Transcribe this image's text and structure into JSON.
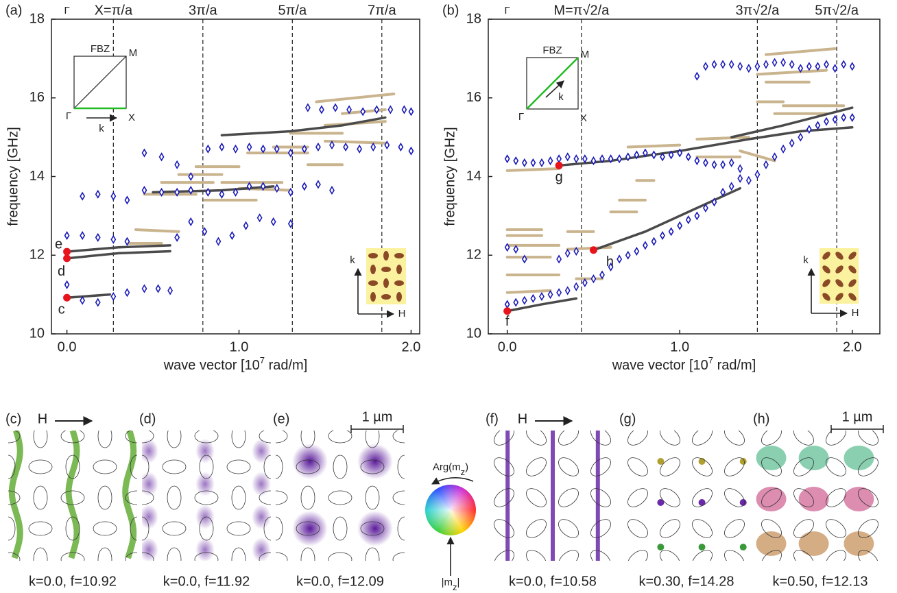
{
  "chart_data": [
    {
      "type": "scatter",
      "panel": "(a)",
      "y_label": "frequency [GHz]",
      "x_label": [
        "wave vector [10",
        "7",
        " rad/m]"
      ],
      "xlim": [
        -0.09,
        2.05
      ],
      "ylim": [
        10,
        18
      ],
      "xticks": [
        {
          "value": 0,
          "label": "0.0"
        },
        {
          "value": 1,
          "label": "1.0"
        },
        {
          "value": 2,
          "label": "2.0"
        }
      ],
      "yticks": [
        10,
        12,
        14,
        16,
        18
      ],
      "gamma_label": "Γ",
      "symmetry_lines": [
        {
          "value": 0.27,
          "label": "X=π/a"
        },
        {
          "value": 0.79,
          "label": "3π/a"
        },
        {
          "value": 1.31,
          "label": "5π/a"
        },
        {
          "value": 1.83,
          "label": "7π/a"
        }
      ],
      "series": [
        {
          "color": "#c9b48e",
          "marker": "dash",
          "x": [
            0.4,
            0.65,
            null,
            0.35,
            0.55,
            null,
            0.45,
            0.75,
            null,
            0.55,
            0.85,
            null,
            0.65,
            0.9,
            null,
            0.75,
            1.0,
            null,
            0.9,
            1.25,
            null,
            1.0,
            1.3,
            null,
            0.8,
            1.1,
            null,
            1.05,
            1.4,
            null,
            1.2,
            1.4,
            null,
            1.3,
            1.6,
            null,
            1.45,
            1.9,
            null,
            1.5,
            1.85,
            null,
            1.5,
            1.85,
            null,
            1.6,
            1.85,
            null,
            1.4,
            1.6
          ],
          "values": [
            12.65,
            12.6,
            null,
            12.3,
            12.3,
            null,
            13.55,
            13.55,
            null,
            13.85,
            13.85,
            null,
            14.05,
            14.05,
            null,
            14.25,
            14.25,
            null,
            13.85,
            13.85,
            null,
            13.7,
            13.65,
            null,
            13.4,
            13.4,
            null,
            14.6,
            14.6,
            null,
            14.75,
            14.75,
            null,
            15.1,
            15.1,
            null,
            15.9,
            16.1,
            null,
            15.3,
            15.4,
            null,
            14.9,
            14.85,
            null,
            15.6,
            15.7,
            null,
            14.3,
            14.3
          ]
        },
        {
          "color": "#4a4a4a",
          "marker": "line",
          "x": [
            0,
            0.3,
            0.6,
            null,
            0,
            0.3,
            0.6,
            null,
            0,
            0.25,
            null,
            0.9,
            1.3,
            1.6,
            1.85,
            null,
            0.5,
            0.9,
            1.2
          ],
          "values": [
            12.09,
            12.2,
            12.25,
            null,
            11.92,
            12.05,
            12.1,
            null,
            10.92,
            11.0,
            null,
            15.05,
            15.15,
            15.3,
            15.5,
            null,
            13.6,
            13.65,
            13.75
          ]
        },
        {
          "color": "#1a1ab8",
          "marker": "diamond",
          "x": [
            0,
            0.09,
            0.18,
            0.27,
            0.35,
            0.45,
            0.53,
            0.6,
            0,
            0.09,
            0.18,
            0.27,
            0.35,
            0.09,
            0.18,
            0.27,
            0.35,
            0.45,
            0.55,
            0.64,
            0.72,
            0.45,
            0.55,
            0.64,
            0.72,
            0.82,
            0.9,
            0.98,
            1.06,
            1.14,
            1.22,
            1.3,
            1.38,
            1.46,
            1.54,
            0.64,
            0.72,
            0.8,
            0.88,
            0.96,
            1.04,
            1.12,
            1.2,
            1.3,
            0.82,
            0.9,
            0.98,
            1.06,
            1.14,
            1.22,
            1.3,
            1.38,
            1.46,
            1.54,
            1.62,
            1.7,
            1.78,
            1.86,
            1.94,
            2.0,
            1.4,
            1.48,
            1.56,
            1.64,
            1.72,
            1.8,
            1.88,
            1.96,
            2.0
          ],
          "values": [
            11.25,
            10.85,
            10.8,
            10.95,
            11.05,
            11.15,
            11.15,
            11.1,
            12.5,
            12.5,
            12.45,
            12.4,
            12.35,
            13.5,
            13.55,
            13.5,
            13.4,
            14.6,
            14.5,
            14.3,
            14.0,
            13.65,
            13.6,
            13.6,
            13.65,
            13.6,
            13.55,
            13.6,
            13.75,
            13.75,
            13.7,
            13.6,
            13.75,
            13.8,
            13.65,
            12.45,
            12.85,
            12.6,
            12.35,
            12.5,
            12.75,
            12.95,
            12.85,
            12.8,
            14.7,
            14.75,
            14.7,
            14.75,
            14.7,
            14.7,
            14.6,
            14.7,
            14.75,
            14.8,
            14.75,
            14.7,
            14.75,
            14.8,
            14.75,
            14.65,
            15.75,
            15.7,
            15.75,
            15.7,
            15.65,
            15.7,
            15.7,
            15.7,
            15.65
          ]
        }
      ],
      "modes": [
        {
          "label": "c",
          "x": 0,
          "value": 10.92
        },
        {
          "label": "d",
          "x": 0,
          "value": 11.92
        },
        {
          "label": "e",
          "x": 0,
          "value": 12.09
        }
      ],
      "inset_bz": {
        "title": "FBZ",
        "gamma": "Γ",
        "x": "X",
        "m": "M",
        "k": "k",
        "k_color": "#22bb22"
      },
      "inset_lattice": {
        "k": "k",
        "h": "H"
      }
    },
    {
      "type": "scatter",
      "panel": "(b)",
      "y_label": "frequency [GHz]",
      "x_label": [
        "wave vector [10",
        "7",
        " rad/m]"
      ],
      "xlim": [
        -0.11,
        2.16
      ],
      "ylim": [
        10,
        18
      ],
      "xticks": [
        {
          "value": 0,
          "label": "0.0"
        },
        {
          "value": 1,
          "label": "1.0"
        },
        {
          "value": 2,
          "label": "2.0"
        }
      ],
      "yticks": [
        10,
        12,
        14,
        16,
        18
      ],
      "gamma_label": "Γ",
      "symmetry_lines": [
        {
          "value": 0.43,
          "label": "M=π√2/a"
        },
        {
          "value": 1.45,
          "label": "3π√2/a"
        },
        {
          "value": 1.91,
          "label": "5π√2/a"
        }
      ],
      "series": [
        {
          "color": "#c9b48e",
          "marker": "dash",
          "x": [
            0,
            0.2,
            null,
            0,
            0.2,
            null,
            0,
            0.3,
            null,
            0,
            0.25,
            null,
            0,
            0.3,
            null,
            0,
            0.25,
            null,
            0.35,
            0.5,
            null,
            0.35,
            0.6,
            null,
            0.4,
            0.55,
            null,
            0.6,
            0.75,
            null,
            0.65,
            0.8,
            null,
            0.75,
            0.85,
            null,
            0.7,
            1.0,
            null,
            1.1,
            1.4,
            null,
            1.1,
            1.35,
            null,
            1.35,
            1.55,
            null,
            1.45,
            1.85,
            null,
            1.5,
            1.9,
            null,
            1.5,
            1.75,
            null,
            1.6,
            1.95,
            null,
            1.55,
            1.85,
            null,
            1.45,
            1.6,
            null,
            0,
            0.3
          ],
          "values": [
            12.65,
            12.65,
            null,
            12.5,
            12.5,
            null,
            12.25,
            12.25,
            null,
            11.95,
            11.95,
            null,
            11.5,
            11.5,
            null,
            11.05,
            11.1,
            null,
            12.6,
            12.6,
            null,
            12.15,
            12.2,
            null,
            11.4,
            11.4,
            null,
            13.1,
            13.1,
            null,
            13.4,
            13.4,
            null,
            13.9,
            13.9,
            null,
            14.75,
            14.8,
            null,
            14.95,
            15.0,
            null,
            14.5,
            14.5,
            null,
            14.65,
            14.4,
            null,
            16.6,
            16.7,
            null,
            17.1,
            17.25,
            null,
            16.4,
            16.4,
            null,
            15.8,
            15.8,
            null,
            15.6,
            15.6,
            null,
            15.9,
            15.9,
            null,
            14.15,
            14.2
          ]
        },
        {
          "color": "#4a4a4a",
          "marker": "line",
          "x": [
            0,
            0.2,
            0.4,
            null,
            0.3,
            0.6,
            1.0,
            1.4,
            1.7,
            2.0,
            null,
            0.5,
            0.8,
            1.1,
            1.35,
            null,
            1.3,
            1.6,
            2.0
          ],
          "values": [
            10.58,
            10.75,
            10.9,
            null,
            14.28,
            14.4,
            14.65,
            14.95,
            15.15,
            15.25,
            null,
            12.13,
            12.6,
            13.2,
            13.7,
            null,
            15.0,
            15.3,
            15.75
          ]
        },
        {
          "color": "#1a1ab8",
          "marker": "diamond",
          "x": [
            0,
            0.05,
            0.1,
            0.15,
            0.2,
            0.25,
            0.3,
            0.35,
            0.4,
            0.45,
            0.5,
            0.55,
            0.6,
            0.65,
            0.7,
            0.75,
            0.8,
            0.85,
            0.9,
            0.95,
            1.0,
            1.05,
            1.1,
            1.15,
            1.2,
            1.25,
            1.3,
            1.35,
            1.4,
            1.45,
            1.5,
            1.55,
            1.6,
            1.65,
            1.7,
            1.75,
            1.8,
            1.85,
            1.9,
            1.95,
            2.0,
            0,
            0.05,
            0.1,
            0.15,
            0.2,
            0.25,
            0.3,
            0.35,
            0.4,
            0.45,
            0.5,
            0.55,
            0.6,
            0.65,
            0.7,
            0.75,
            0.8,
            0.85,
            0.9,
            0.95,
            1.0,
            1.05,
            1.1,
            1.15,
            1.2,
            1.25,
            1.3,
            1.35,
            0,
            0.05,
            0.1,
            0.3,
            0.35,
            0.4,
            1.1,
            1.15,
            1.2,
            1.25,
            1.3,
            1.35,
            1.4,
            1.45,
            1.5,
            1.55,
            1.6,
            1.65,
            1.7,
            1.75,
            1.8,
            1.85,
            1.9,
            1.95,
            2.0
          ],
          "values": [
            10.75,
            10.8,
            10.85,
            10.9,
            10.95,
            11.0,
            11.05,
            11.1,
            11.2,
            11.3,
            11.4,
            11.5,
            11.7,
            11.9,
            12.0,
            12.1,
            12.25,
            12.35,
            12.5,
            12.6,
            12.75,
            12.9,
            13.0,
            13.2,
            13.35,
            13.6,
            13.75,
            13.95,
            13.9,
            14.05,
            14.3,
            14.5,
            14.7,
            14.85,
            15.0,
            15.2,
            15.3,
            15.4,
            15.45,
            15.5,
            15.5,
            14.45,
            14.4,
            14.35,
            14.35,
            14.35,
            14.4,
            14.45,
            14.5,
            14.45,
            14.45,
            14.4,
            14.45,
            14.45,
            14.45,
            14.5,
            14.55,
            14.6,
            14.55,
            14.5,
            14.55,
            14.6,
            14.5,
            14.4,
            14.35,
            14.3,
            14.3,
            14.35,
            14.2,
            12.2,
            12.15,
            11.9,
            11.9,
            12.05,
            12.1,
            16.55,
            16.8,
            16.85,
            16.85,
            16.85,
            16.8,
            16.75,
            16.8,
            16.85,
            16.9,
            16.9,
            16.85,
            16.75,
            16.8,
            16.8,
            16.85,
            16.75,
            16.85,
            16.8
          ]
        }
      ],
      "modes": [
        {
          "label": "f",
          "x": 0,
          "value": 10.58
        },
        {
          "label": "g",
          "x": 0.3,
          "value": 14.28
        },
        {
          "label": "h",
          "x": 0.5,
          "value": 12.13
        }
      ],
      "inset_bz": {
        "title": "FBZ",
        "gamma": "Γ",
        "x": "X",
        "m": "M",
        "k": "k",
        "k_color": "#22bb22"
      },
      "inset_lattice": {
        "k": "k",
        "h": "H"
      }
    }
  ],
  "panels": [
    {
      "label": "(c)",
      "caption": "k=0.0, f=10.92"
    },
    {
      "label": "(d)",
      "caption": "k=0.0, f=11.92"
    },
    {
      "label": "(e)",
      "caption": "k=0.0, f=12.09"
    },
    {
      "label": "(f)",
      "caption": "k=0.0, f=10.58"
    },
    {
      "label": "(g)",
      "caption": "k=0.30, f=14.28"
    },
    {
      "label": "(h)",
      "caption": "k=0.50, f=12.13"
    }
  ],
  "field_label": "H",
  "scale_bar": "1 µm",
  "color_wheel": {
    "arg": [
      "Arg(m",
      "z",
      ")"
    ],
    "abs": [
      "|m",
      "z",
      "|"
    ]
  }
}
